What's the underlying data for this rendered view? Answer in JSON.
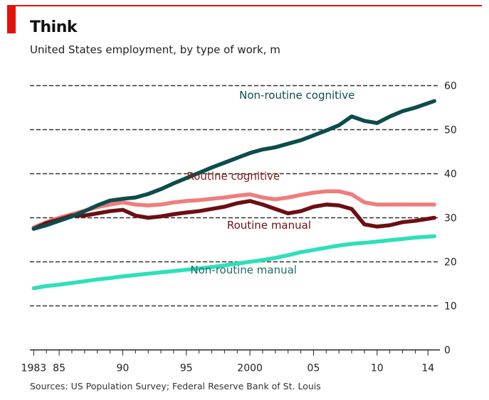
{
  "header": {
    "title": "Think",
    "subtitle": "United States employment, by type of work, m"
  },
  "footer": {
    "source": "Sources: US Population Survey; Federal Reserve Bank of St. Louis"
  },
  "colors": {
    "accent": "#e3120b",
    "non_routine_cognitive": "#0d4c4c",
    "routine_cognitive": "#f07c7c",
    "routine_manual": "#6b0f14",
    "non_routine_manual": "#2ee0b8"
  },
  "chart_data": {
    "type": "line",
    "title": "Think",
    "subtitle": "United States employment, by type of work, m",
    "ylim": [
      0,
      60
    ],
    "xlim": [
      1982.7,
      2014.6
    ],
    "y_ticks": [
      0,
      10,
      20,
      30,
      40,
      50,
      60
    ],
    "x_tick_labels": [
      {
        "x": 1983,
        "label": "1983"
      },
      {
        "x": 1985,
        "label": "85"
      },
      {
        "x": 1990,
        "label": "90"
      },
      {
        "x": 1995,
        "label": "95"
      },
      {
        "x": 2000,
        "label": "2000"
      },
      {
        "x": 2005,
        "label": "05"
      },
      {
        "x": 2010,
        "label": "10"
      },
      {
        "x": 2014,
        "label": "14"
      }
    ],
    "grid": true,
    "y_axis_side": "right",
    "series": [
      {
        "name": "Non-routine cognitive",
        "color": "#0d4c4c",
        "label_pos": [
          2003.7,
          57
        ],
        "x": [
          1983,
          1984,
          1985,
          1986,
          1987,
          1988,
          1989,
          1990,
          1991,
          1992,
          1993,
          1994,
          1995,
          1996,
          1997,
          1998,
          1999,
          2000,
          2001,
          2002,
          2003,
          2004,
          2005,
          2006,
          2007,
          2008,
          2009,
          2010,
          2011,
          2012,
          2013,
          2014.5
        ],
        "y": [
          27.5,
          28.3,
          29.3,
          30.3,
          31.5,
          32.8,
          33.9,
          34.3,
          34.6,
          35.4,
          36.5,
          37.8,
          39.0,
          40.2,
          41.4,
          42.5,
          43.6,
          44.7,
          45.5,
          46.0,
          46.8,
          47.6,
          48.7,
          49.8,
          51.0,
          53.0,
          52.0,
          51.5,
          53.0,
          54.2,
          55.0,
          56.5
        ]
      },
      {
        "name": "Routine cognitive",
        "color": "#f07c7c",
        "label_pos": [
          1998.7,
          38.6
        ],
        "x": [
          1983,
          1984,
          1985,
          1986,
          1987,
          1988,
          1989,
          1990,
          1991,
          1992,
          1993,
          1994,
          1995,
          1996,
          1997,
          1998,
          1999,
          2000,
          2001,
          2002,
          2003,
          2004,
          2005,
          2006,
          2007,
          2008,
          2009,
          2010,
          2011,
          2012,
          2013,
          2014.5
        ],
        "y": [
          27.8,
          29.0,
          30.0,
          30.8,
          31.6,
          32.4,
          33.0,
          33.5,
          33.0,
          32.8,
          33.0,
          33.5,
          33.8,
          34.0,
          34.3,
          34.6,
          35.0,
          35.3,
          34.6,
          34.2,
          34.6,
          35.2,
          35.7,
          36.0,
          36.0,
          35.3,
          33.5,
          33.0,
          33.0,
          33.0,
          33.0,
          33.0
        ]
      },
      {
        "name": "Routine manual",
        "color": "#6b0f14",
        "label_pos": [
          2001.5,
          27.5
        ],
        "x": [
          1983,
          1984,
          1985,
          1986,
          1987,
          1988,
          1989,
          1990,
          1991,
          1992,
          1993,
          1994,
          1995,
          1996,
          1997,
          1998,
          1999,
          2000,
          2001,
          2002,
          2003,
          2004,
          2005,
          2006,
          2007,
          2008,
          2009,
          2010,
          2011,
          2012,
          2013,
          2014.5
        ],
        "y": [
          27.5,
          28.8,
          29.6,
          30.5,
          30.5,
          31.0,
          31.5,
          31.8,
          30.5,
          30.0,
          30.3,
          30.8,
          31.2,
          31.5,
          32.0,
          32.5,
          33.3,
          33.8,
          33.0,
          32.0,
          31.0,
          31.5,
          32.5,
          33.0,
          32.8,
          32.0,
          28.5,
          28.0,
          28.3,
          29.0,
          29.3,
          30.0
        ]
      },
      {
        "name": "Non-routine manual",
        "color": "#2ee0b8",
        "label_pos": [
          1999.5,
          17.3
        ],
        "x": [
          1983,
          1984,
          1985,
          1986,
          1987,
          1988,
          1989,
          1990,
          1991,
          1992,
          1993,
          1994,
          1995,
          1996,
          1997,
          1998,
          1999,
          2000,
          2001,
          2002,
          2003,
          2004,
          2005,
          2006,
          2007,
          2008,
          2009,
          2010,
          2011,
          2012,
          2013,
          2014.5
        ],
        "y": [
          14.0,
          14.5,
          14.8,
          15.2,
          15.6,
          16.0,
          16.3,
          16.7,
          17.0,
          17.3,
          17.6,
          17.9,
          18.2,
          18.5,
          18.8,
          19.2,
          19.6,
          20.0,
          20.4,
          20.9,
          21.5,
          22.2,
          22.7,
          23.2,
          23.7,
          24.1,
          24.3,
          24.6,
          24.9,
          25.2,
          25.5,
          25.8
        ]
      }
    ]
  }
}
